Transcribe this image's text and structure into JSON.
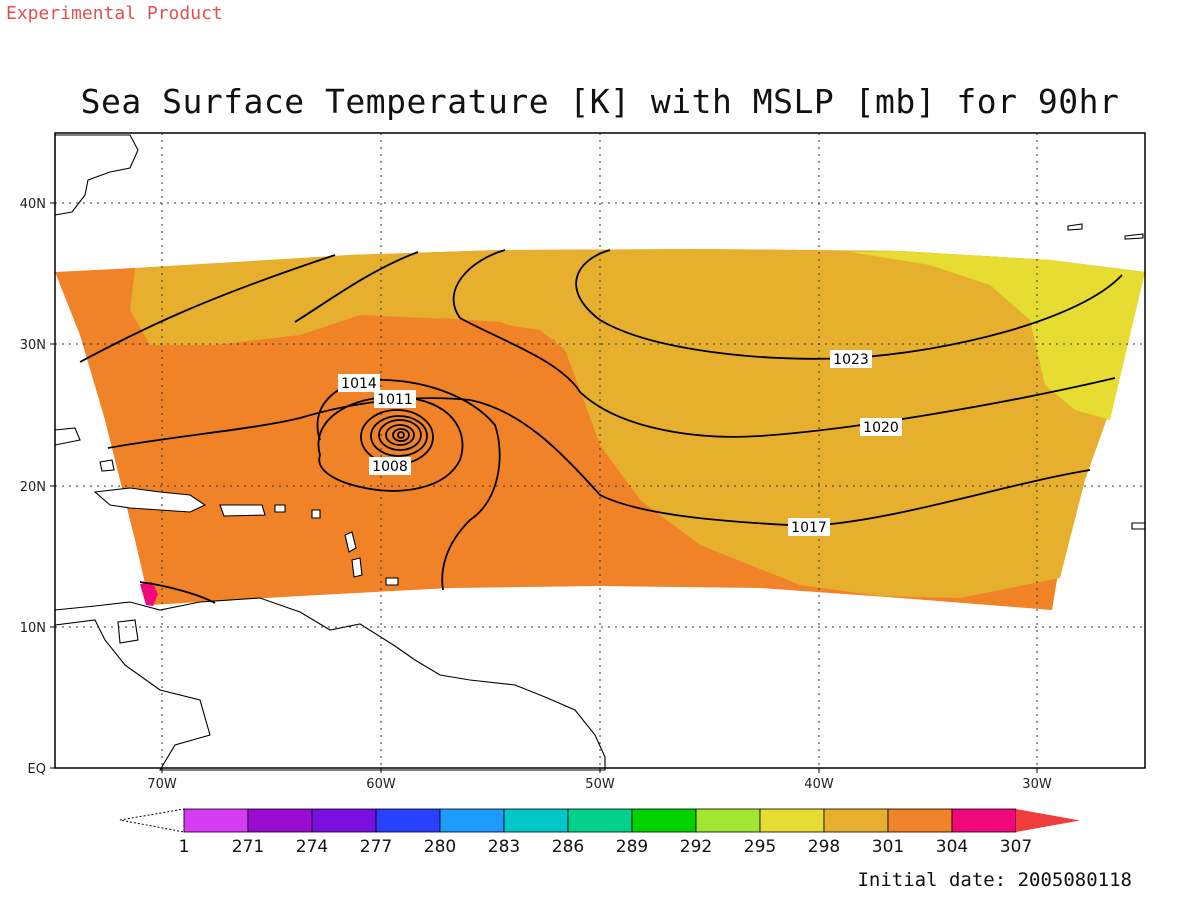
{
  "header": {
    "stamp": "Experimental Product",
    "title": "Sea Surface Temperature [K] with MSLP [mb] for 90hr"
  },
  "map": {
    "lat_labels": [
      "40N",
      "30N",
      "20N",
      "10N",
      "EQ"
    ],
    "lon_labels": [
      "70W",
      "60W",
      "50W",
      "40W",
      "30W"
    ],
    "isobar_labels": [
      "1014",
      "1011",
      "1008",
      "1023",
      "1020",
      "1017"
    ]
  },
  "colorbar": {
    "labels": [
      "1",
      "271",
      "274",
      "277",
      "280",
      "283",
      "286",
      "289",
      "292",
      "295",
      "298",
      "301",
      "304",
      "307"
    ],
    "colors": [
      "#d63cf5",
      "#9a0cd2",
      "#7a0fe0",
      "#2840ff",
      "#1e9bff",
      "#00c8c8",
      "#00d28c",
      "#00d200",
      "#a0e632",
      "#e6dc32",
      "#e6af2d",
      "#f08228",
      "#f0087a",
      "#f03c3c"
    ]
  },
  "footer": {
    "initial_date": "Initial date: 2005080118"
  }
}
